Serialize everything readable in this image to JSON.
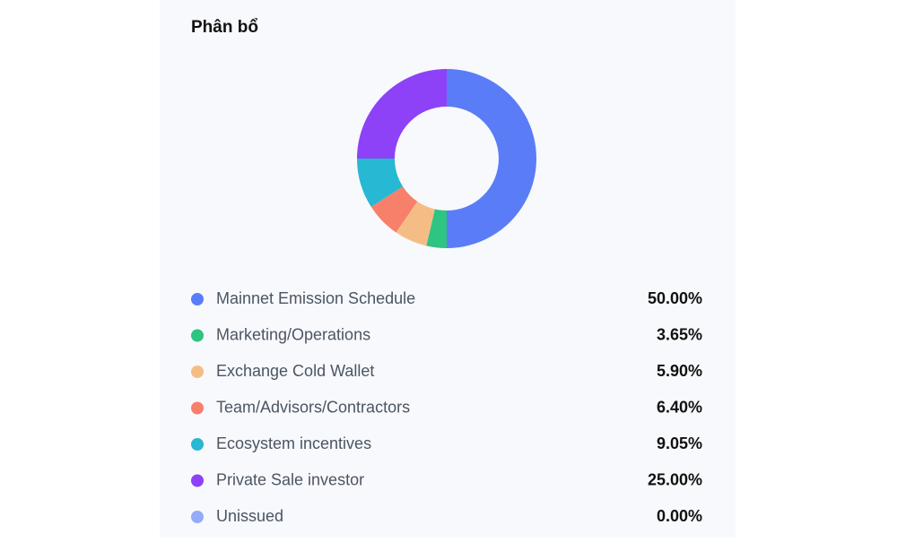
{
  "chart_data": {
    "type": "pie",
    "donut": true,
    "title": "Phân bổ",
    "categories": [
      "Mainnet Emission Schedule",
      "Marketing/Operations",
      "Exchange Cold Wallet",
      "Team/Advisors/Contractors",
      "Ecosystem incentives",
      "Private Sale investor",
      "Unissued"
    ],
    "values": [
      50,
      3.65,
      5.9,
      6.4,
      9.05,
      25,
      0
    ],
    "value_labels": [
      "50.00%",
      "3.65%",
      "5.90%",
      "6.40%",
      "9.05%",
      "25.00%",
      "0.00%"
    ],
    "colors": [
      "#5a7df7",
      "#2ec482",
      "#f5bd86",
      "#f7806b",
      "#27b8d3",
      "#8e42f7",
      "#93abf8"
    ]
  }
}
